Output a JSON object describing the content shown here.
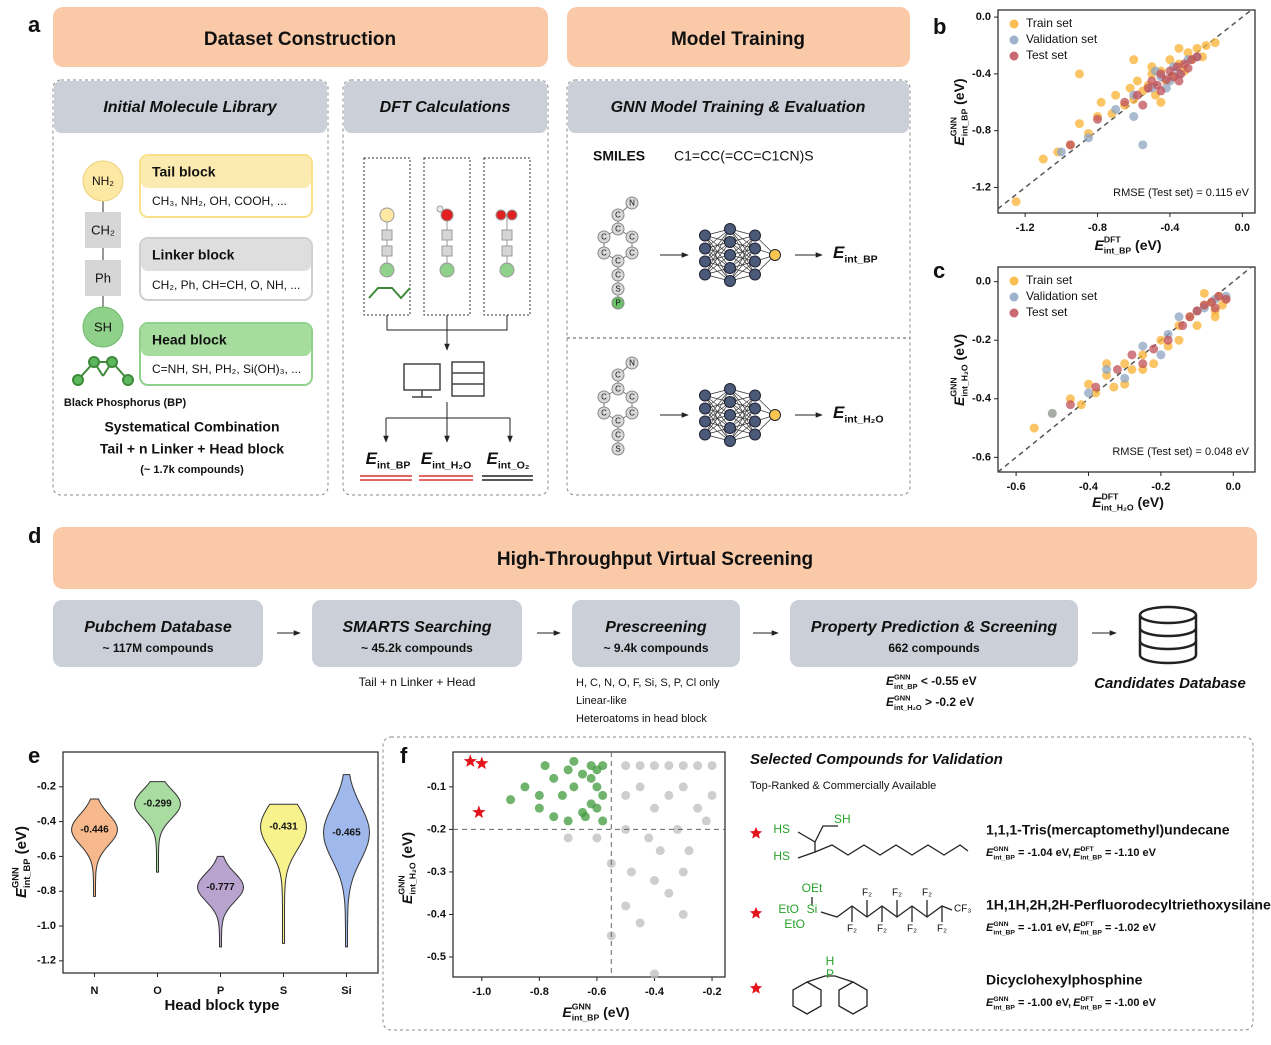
{
  "panel_labels": [
    "a",
    "b",
    "c",
    "d",
    "e",
    "f"
  ],
  "panel_a": {
    "header_left": "Dataset Construction",
    "header_right": "Model Training",
    "library": {
      "title": "Initial Molecule Library",
      "chain": [
        "NH₂",
        "CH₂",
        "Ph",
        "SH"
      ],
      "bp": "Black Phosphorus (BP)",
      "blocks": [
        {
          "name": "Tail block",
          "examples": "CH₃, NH₂, OH, COOH, ..."
        },
        {
          "name": "Linker block",
          "examples": "CH₂, Ph, CH=CH, O, NH, ..."
        },
        {
          "name": "Head block",
          "examples": "C=NH, SH, PH₂, Si(OH)₃, ..."
        }
      ],
      "combination": [
        "Systematical Combination",
        "Tail + n Linker + Head block",
        "(~ 1.7k compounds)"
      ]
    },
    "dft": {
      "title": "DFT Calculations",
      "outputs": [
        {
          "main": "E",
          "sub": "int_BP"
        },
        {
          "main": "E",
          "sub": "int_H₂O"
        },
        {
          "main": "E",
          "sub": "int_O₂"
        }
      ]
    },
    "gnn": {
      "title": "GNN Model Training & Evaluation",
      "smiles_label": "SMILES",
      "smiles": "C1=CC(=CC=C1CN)S",
      "graphs": [
        {
          "atoms": [
            "N",
            "C",
            "C",
            "C",
            "C",
            "C",
            "C",
            "C",
            "C",
            "S",
            "P"
          ],
          "output": {
            "main": "E",
            "sub": "int_BP"
          }
        },
        {
          "atoms": [
            "N",
            "C",
            "C",
            "C",
            "C",
            "C",
            "C",
            "C",
            "C",
            "S"
          ],
          "output": {
            "main": "E",
            "sub": "int_H₂O"
          }
        }
      ]
    }
  },
  "panel_d": {
    "title": "High-Throughput Virtual Screening",
    "steps": [
      {
        "name": "Pubchem Database",
        "count": "~ 117M compounds",
        "notes": []
      },
      {
        "name": "SMARTS Searching",
        "count": "~ 45.2k compounds",
        "notes": [
          "Tail + n Linker + Head"
        ]
      },
      {
        "name": "Prescreening",
        "count": "~ 9.4k compounds",
        "notes": [
          "H, C, N, O, F, Si, S, P, Cl only",
          "Linear-like",
          "Heteroatoms in head block"
        ]
      },
      {
        "name": "Property Prediction & Screening",
        "count": "662 compounds",
        "notes": []
      }
    ],
    "criteria": [
      {
        "main": "E",
        "sup": "GNN",
        "sub": "int_BP",
        "tail": " < -0.55 eV"
      },
      {
        "main": "E",
        "sup": "GNN",
        "sub": "int_H₂O",
        "tail": " > -0.2 eV"
      }
    ],
    "database": "Candidates Database"
  },
  "panel_f": {
    "title": "Selected Compounds for Validation",
    "subtitle": "Top-Ranked & Commercially Available",
    "compounds": [
      {
        "name": "1,1,1-Tris(mercaptomethyl)undecane",
        "gnn": {
          "main": "E",
          "sup": "GNN",
          "sub": "int_BP",
          "tail": " = -1.04 eV, "
        },
        "dft": {
          "main": "E",
          "sup": "DFT",
          "sub": "int_BP",
          "tail": " = -1.10 eV"
        },
        "structure_labels": [
          "SH",
          "HS",
          "HS"
        ]
      },
      {
        "name": "1H,1H,2H,2H-Perfluorodecyltriethoxysilane",
        "gnn": {
          "main": "E",
          "sup": "GNN",
          "sub": "int_BP",
          "tail": " = -1.01 eV, "
        },
        "dft": {
          "main": "E",
          "sup": "DFT",
          "sub": "int_BP",
          "tail": " = -1.02 eV"
        },
        "structure_labels": [
          "OEt",
          "EtO",
          "Si",
          "EtO",
          "F₂",
          "F₂",
          "F₂",
          "F₂",
          "F₂",
          "F₂",
          "F₂",
          "CF₃"
        ]
      },
      {
        "name": "Dicyclohexylphosphine",
        "gnn": {
          "main": "E",
          "sup": "GNN",
          "sub": "int_BP",
          "tail": " = -1.00 eV, "
        },
        "dft": {
          "main": "E",
          "sup": "DFT",
          "sub": "int_BP",
          "tail": " = -1.00 eV"
        },
        "structure_labels": [
          "H",
          "P"
        ]
      }
    ]
  },
  "chart_data": [
    {
      "type": "scatter",
      "xlabel": {
        "main": "E",
        "sup": "DFT",
        "sub": "int_BP",
        "tail": " (eV)"
      },
      "ylabel": {
        "main": "E",
        "sup": "GNN",
        "sub": "int_BP",
        "tail": " (eV)"
      },
      "xlim": [
        -1.35,
        0.07
      ],
      "ylim": [
        -1.38,
        0.05
      ],
      "xticks": [
        -1.2,
        -0.8,
        -0.4,
        {
          "value": 0,
          "label": "0.0"
        }
      ],
      "yticks": [
        -1.2,
        -0.8,
        -0.4,
        {
          "value": 0,
          "label": "0.0"
        }
      ],
      "diagonal": true,
      "legend": "upper left",
      "annotation": "RMSE (Test set) = 0.115 eV",
      "series": [
        {
          "name": "Train set",
          "color": "#f9b233",
          "x": [
            -1.25,
            -1.1,
            -1.02,
            -0.95,
            -0.9,
            -0.85,
            -0.8,
            -0.78,
            -0.72,
            -0.7,
            -0.65,
            -0.62,
            -0.6,
            -0.58,
            -0.55,
            -0.52,
            -0.5,
            -0.48,
            -0.45,
            -0.42,
            -0.4,
            -0.38,
            -0.35,
            -0.32,
            -0.3,
            -0.28,
            -0.25,
            -0.22,
            -0.2,
            -0.15,
            -0.9,
            -0.6,
            -0.45,
            -0.35,
            -0.5
          ],
          "y": [
            -1.3,
            -1.0,
            -0.95,
            -0.9,
            -0.75,
            -0.82,
            -0.7,
            -0.6,
            -0.68,
            -0.55,
            -0.62,
            -0.5,
            -0.58,
            -0.45,
            -0.52,
            -0.48,
            -0.4,
            -0.55,
            -0.38,
            -0.45,
            -0.3,
            -0.42,
            -0.33,
            -0.38,
            -0.25,
            -0.3,
            -0.22,
            -0.28,
            -0.2,
            -0.18,
            -0.4,
            -0.3,
            -0.6,
            -0.22,
            -0.35
          ]
        },
        {
          "name": "Validation set",
          "color": "#8ea4c2",
          "x": [
            -1.0,
            -0.85,
            -0.7,
            -0.6,
            -0.55,
            -0.5,
            -0.45,
            -0.4,
            -0.38,
            -0.35,
            -0.3,
            -0.25,
            -0.6,
            -0.42,
            -0.48
          ],
          "y": [
            -0.95,
            -0.85,
            -0.65,
            -0.55,
            -0.9,
            -0.5,
            -0.42,
            -0.45,
            -0.35,
            -0.4,
            -0.3,
            -0.28,
            -0.7,
            -0.5,
            -0.38
          ]
        },
        {
          "name": "Test set",
          "color": "#c0505a",
          "x": [
            -0.95,
            -0.8,
            -0.65,
            -0.58,
            -0.52,
            -0.5,
            -0.47,
            -0.45,
            -0.42,
            -0.4,
            -0.38,
            -0.36,
            -0.34,
            -0.32,
            -0.3,
            -0.28,
            -0.25,
            -0.45,
            -0.55,
            -0.35
          ],
          "y": [
            -0.9,
            -0.72,
            -0.6,
            -0.55,
            -0.5,
            -0.45,
            -0.48,
            -0.4,
            -0.44,
            -0.38,
            -0.42,
            -0.35,
            -0.4,
            -0.33,
            -0.36,
            -0.3,
            -0.28,
            -0.52,
            -0.62,
            -0.45
          ]
        }
      ]
    },
    {
      "type": "scatter",
      "xlabel": {
        "main": "E",
        "sup": "DFT",
        "sub": "int_H₂O",
        "tail": " (eV)"
      },
      "ylabel": {
        "main": "E",
        "sup": "GNN",
        "sub": "int_H₂O",
        "tail": " (eV)"
      },
      "xlim": [
        -0.65,
        0.06
      ],
      "ylim": [
        -0.65,
        0.05
      ],
      "xticks": [
        -0.6,
        -0.4,
        -0.2,
        {
          "value": 0,
          "label": "0.0"
        }
      ],
      "yticks": [
        -0.6,
        -0.4,
        -0.2,
        {
          "value": 0,
          "label": "0.0"
        }
      ],
      "diagonal": true,
      "legend": "upper left",
      "annotation": "RMSE (Test set) = 0.048 eV",
      "series": [
        {
          "name": "Train set",
          "color": "#f9b233",
          "x": [
            -0.55,
            -0.5,
            -0.45,
            -0.42,
            -0.4,
            -0.38,
            -0.35,
            -0.33,
            -0.3,
            -0.28,
            -0.25,
            -0.22,
            -0.2,
            -0.18,
            -0.15,
            -0.12,
            -0.1,
            -0.08,
            -0.06,
            -0.05,
            -0.04,
            -0.03,
            -0.02,
            -0.1,
            -0.15,
            -0.3,
            -0.25,
            -0.35,
            -0.05,
            -0.08
          ],
          "y": [
            -0.5,
            -0.45,
            -0.4,
            -0.42,
            -0.35,
            -0.38,
            -0.32,
            -0.36,
            -0.28,
            -0.3,
            -0.25,
            -0.28,
            -0.2,
            -0.22,
            -0.15,
            -0.12,
            -0.1,
            -0.08,
            -0.07,
            -0.1,
            -0.05,
            -0.08,
            -0.06,
            -0.15,
            -0.2,
            -0.35,
            -0.3,
            -0.28,
            -0.12,
            -0.04
          ]
        },
        {
          "name": "Validation set",
          "color": "#8ea4c2",
          "x": [
            -0.5,
            -0.4,
            -0.35,
            -0.3,
            -0.25,
            -0.2,
            -0.15,
            -0.1,
            -0.05,
            -0.02,
            -0.18,
            -0.08
          ],
          "y": [
            -0.45,
            -0.38,
            -0.3,
            -0.33,
            -0.22,
            -0.25,
            -0.12,
            -0.1,
            -0.06,
            -0.05,
            -0.18,
            -0.09
          ]
        },
        {
          "name": "Test set",
          "color": "#c0505a",
          "x": [
            -0.45,
            -0.38,
            -0.32,
            -0.28,
            -0.22,
            -0.18,
            -0.14,
            -0.1,
            -0.08,
            -0.06,
            -0.04,
            -0.02,
            -0.12,
            -0.25,
            -0.05
          ],
          "y": [
            -0.42,
            -0.36,
            -0.3,
            -0.25,
            -0.23,
            -0.2,
            -0.15,
            -0.1,
            -0.08,
            -0.07,
            -0.05,
            -0.06,
            -0.12,
            -0.28,
            -0.09
          ]
        }
      ]
    },
    {
      "type": "violin",
      "xlabel": "Head block type",
      "ylabel": {
        "main": "E",
        "sup": "GNN",
        "sub": "int_BP",
        "tail": " (eV)"
      },
      "categories": [
        "N",
        "O",
        "P",
        "S",
        "Si"
      ],
      "values": [
        -0.446,
        -0.299,
        -0.777,
        -0.431,
        -0.465
      ],
      "min": [
        -0.83,
        -0.69,
        -1.12,
        -1.1,
        -1.12
      ],
      "max": [
        -0.27,
        -0.17,
        -0.6,
        -0.3,
        -0.13
      ],
      "colors": [
        "#f7b98c",
        "#a9dca1",
        "#b9a4d0",
        "#f7f28c",
        "#a0b9ec"
      ],
      "ylim": [
        -1.27,
        0
      ],
      "yticks": [
        -1.2,
        {
          "value": -1,
          "label": "-1.0"
        },
        -0.8,
        -0.6,
        -0.4,
        -0.2
      ]
    },
    {
      "type": "scatter",
      "xlabel": {
        "main": "E",
        "sup": "GNN",
        "sub": "int_BP",
        "tail": " (eV)"
      },
      "ylabel": {
        "main": "E",
        "sup": "GNN",
        "sub": "int_H₂O",
        "tail": " (eV)"
      },
      "xlim": [
        -1.1,
        -0.155
      ],
      "ylim": [
        -0.547,
        -0.018
      ],
      "xticks": [
        {
          "value": -1,
          "label": "-1.0"
        },
        -0.8,
        -0.6,
        -0.4,
        -0.2
      ],
      "yticks": [
        -0.5,
        -0.4,
        -0.3,
        -0.2,
        -0.1
      ],
      "thresholds": {
        "x": -0.55,
        "y": -0.2
      },
      "series": [
        {
          "color": "#bdbdbd",
          "x": [
            -0.5,
            -0.45,
            -0.4,
            -0.35,
            -0.3,
            -0.25,
            -0.2,
            -0.5,
            -0.45,
            -0.4,
            -0.35,
            -0.3,
            -0.25,
            -0.2,
            -0.5,
            -0.42,
            -0.38,
            -0.32,
            -0.28,
            -0.22,
            -0.48,
            -0.4,
            -0.35,
            -0.3,
            -0.55,
            -0.5,
            -0.45,
            -0.6,
            -0.7,
            -0.4,
            -0.55,
            -0.3
          ],
          "y": [
            -0.05,
            -0.05,
            -0.05,
            -0.05,
            -0.05,
            -0.05,
            -0.05,
            -0.12,
            -0.1,
            -0.15,
            -0.12,
            -0.1,
            -0.15,
            -0.12,
            -0.2,
            -0.22,
            -0.25,
            -0.2,
            -0.25,
            -0.18,
            -0.3,
            -0.32,
            -0.35,
            -0.3,
            -0.28,
            -0.38,
            -0.42,
            -0.22,
            -0.22,
            -0.54,
            -0.45,
            -0.4
          ]
        },
        {
          "color": "#3f9a3c",
          "x": [
            -0.58,
            -0.6,
            -0.62,
            -0.65,
            -0.68,
            -0.7,
            -0.72,
            -0.75,
            -0.8,
            -0.85,
            -0.9,
            -0.6,
            -0.62,
            -0.65,
            -0.7,
            -0.75,
            -0.8,
            -0.58,
            -0.6,
            -0.62,
            -0.68,
            -0.78,
            -0.58,
            -0.64
          ],
          "y": [
            -0.05,
            -0.06,
            -0.05,
            -0.07,
            -0.1,
            -0.06,
            -0.12,
            -0.08,
            -0.15,
            -0.1,
            -0.13,
            -0.1,
            -0.14,
            -0.16,
            -0.18,
            -0.17,
            -0.12,
            -0.18,
            -0.15,
            -0.08,
            -0.04,
            -0.05,
            -0.12,
            -0.17
          ]
        },
        {
          "color": "#e3141b",
          "marker": "star",
          "x": [
            -1.04,
            -1.0,
            -1.01
          ],
          "y": [
            -0.04,
            -0.045,
            -0.16
          ]
        }
      ]
    }
  ]
}
